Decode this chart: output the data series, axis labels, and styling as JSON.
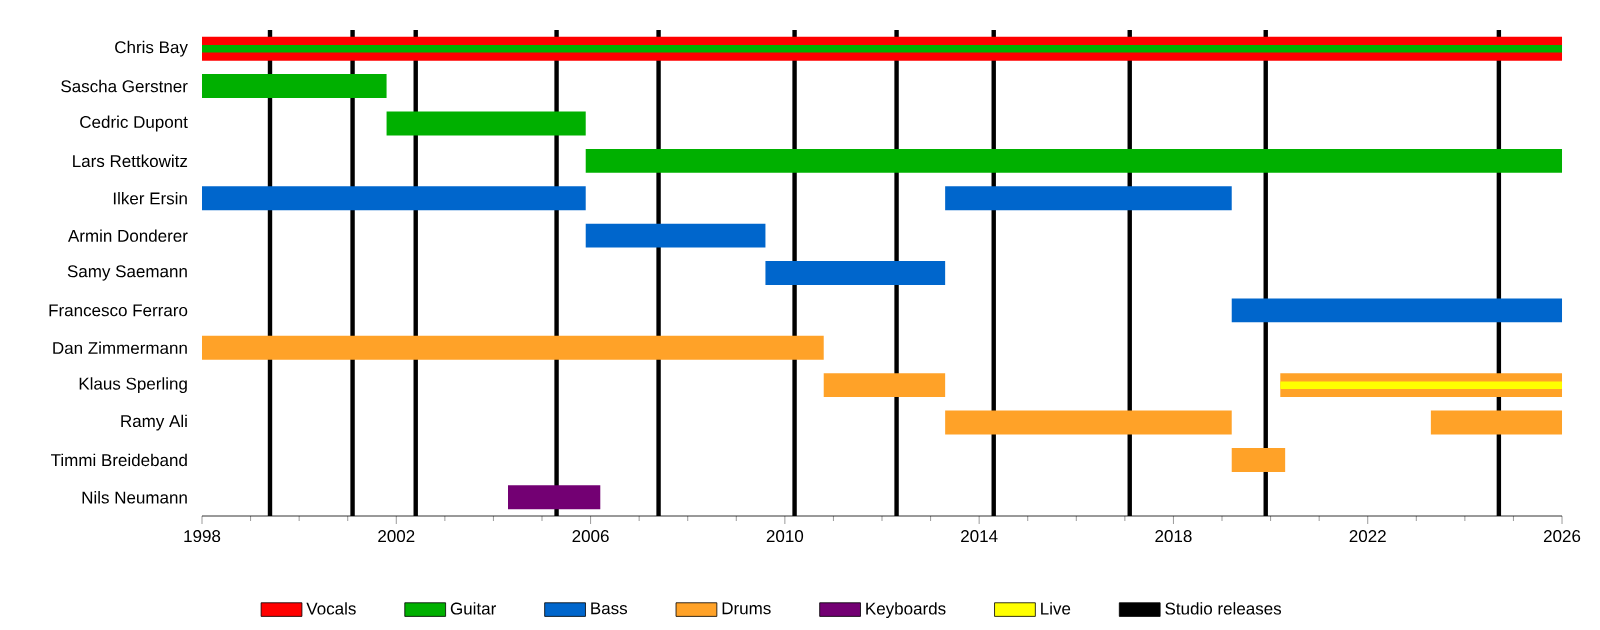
{
  "chart_data": {
    "type": "bar",
    "orientation": "horizontal",
    "legend": "bottom",
    "categories": [
      "Chris Bay",
      "Sascha Gerstner",
      "Cedric Dupont",
      "Lars Rettkowitz",
      "Ilker Ersin",
      "Armin Donderer",
      "Samy Saemann",
      "Francesco Ferraro",
      "Dan Zimmermann",
      "Klaus Sperling",
      "Ramy Ali",
      "Timmi Breideband",
      "Nils Neumann"
    ],
    "xlim": [
      1998,
      2026
    ],
    "xticks": [
      1998,
      2002,
      2006,
      2010,
      2014,
      2018,
      2022,
      2026
    ],
    "series": [
      {
        "name": "Vocals",
        "color": "#ff0000",
        "base": [
          1998,
          null,
          null,
          null,
          null,
          null,
          null,
          null,
          null,
          null,
          null,
          null,
          null
        ],
        "values": [
          28,
          null,
          null,
          null,
          null,
          null,
          null,
          null,
          null,
          null,
          null,
          null,
          null
        ]
      },
      {
        "name": "Guitar",
        "color": "#00b000",
        "base": [
          1998,
          1998,
          2001.8,
          2005.9,
          null,
          null,
          null,
          null,
          null,
          null,
          null,
          null,
          null
        ],
        "values": [
          28,
          3.8,
          4.1,
          20.1,
          null,
          null,
          null,
          null,
          null,
          null,
          null,
          null,
          null
        ]
      },
      {
        "name": "Bass",
        "color": "#0066cc",
        "base": [
          null,
          null,
          null,
          null,
          1998,
          2005.9,
          2009.6,
          2019.2,
          null,
          null,
          null,
          null,
          null
        ],
        "values": [
          null,
          null,
          null,
          null,
          7.9,
          3.7,
          3.7,
          6.8,
          null,
          null,
          null,
          null,
          null
        ]
      },
      {
        "color": "#0066cc",
        "base": [
          null,
          null,
          null,
          null,
          2013.3,
          null,
          null,
          null,
          null,
          null,
          null,
          null,
          null
        ],
        "values": [
          null,
          null,
          null,
          null,
          5.9,
          null,
          null,
          null,
          null,
          null,
          null,
          null,
          null
        ]
      },
      {
        "name": "Drums",
        "color": "#ffa228",
        "base": [
          null,
          null,
          null,
          null,
          null,
          null,
          null,
          null,
          1998,
          2010.8,
          2013.3,
          2019.2,
          null
        ],
        "values": [
          null,
          null,
          null,
          null,
          null,
          null,
          null,
          null,
          12.8,
          2.5,
          5.9,
          1.1,
          null
        ]
      },
      {
        "color": "#ffa228",
        "base": [
          null,
          null,
          null,
          null,
          null,
          null,
          null,
          null,
          null,
          2020.2,
          2023.3,
          null,
          null
        ],
        "values": [
          null,
          null,
          null,
          null,
          null,
          null,
          null,
          null,
          null,
          5.8,
          2.7,
          null,
          null
        ]
      },
      {
        "name": "Keyboards",
        "color": "#730073",
        "base": [
          null,
          null,
          null,
          null,
          null,
          null,
          null,
          null,
          null,
          null,
          null,
          null,
          2004.3
        ],
        "values": [
          null,
          null,
          null,
          null,
          null,
          null,
          null,
          null,
          null,
          null,
          null,
          null,
          1.9
        ]
      },
      {
        "name": "Live",
        "color": "#ffff00",
        "base": [
          null,
          null,
          null,
          null,
          null,
          null,
          null,
          null,
          null,
          2020.2,
          null,
          null,
          null
        ],
        "values": [
          null,
          null,
          null,
          null,
          null,
          null,
          null,
          null,
          null,
          5.8,
          null,
          null,
          null
        ]
      }
    ],
    "ref_lines": [
      {
        "axis": "x",
        "value": 1999.4,
        "color": "#000000",
        "label": "Studio releases"
      },
      {
        "axis": "x",
        "value": 2001.1,
        "color": "#000000"
      },
      {
        "axis": "x",
        "value": 2002.4,
        "color": "#000000"
      },
      {
        "axis": "x",
        "value": 2005.3,
        "color": "#000000"
      },
      {
        "axis": "x",
        "value": 2007.4,
        "color": "#000000"
      },
      {
        "axis": "x",
        "value": 2010.2,
        "color": "#000000"
      },
      {
        "axis": "x",
        "value": 2012.3,
        "color": "#000000"
      },
      {
        "axis": "x",
        "value": 2014.3,
        "color": "#000000"
      },
      {
        "axis": "x",
        "value": 2017.1,
        "color": "#000000"
      },
      {
        "axis": "x",
        "value": 2019.9,
        "color": "#000000"
      },
      {
        "axis": "x",
        "value": 2024.7,
        "color": "#000000"
      }
    ]
  }
}
